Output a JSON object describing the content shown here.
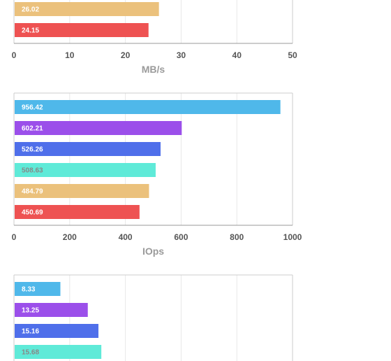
{
  "colors": {
    "cyan": "#4fb8ea",
    "purple": "#9b4fea",
    "blue": "#4f6fea",
    "teal": "#5fead8",
    "amber": "#ebc17c",
    "red": "#ee5252",
    "axis": "#999999",
    "grid": "#e8e8e8",
    "frame": "#cccccc"
  },
  "chart_data": [
    {
      "type": "bar",
      "orientation": "horizontal",
      "xlabel": "MB/s",
      "xlim": [
        0,
        50
      ],
      "xticks": [
        "0",
        "10",
        "20",
        "30",
        "40",
        "50"
      ],
      "values": [
        26.02,
        24.15
      ],
      "labels": [
        "26.02",
        "24.15"
      ],
      "bar_colors": [
        "amber",
        "red"
      ],
      "label_colors": [
        "#ffffff",
        "#ffffff"
      ],
      "grid": true
    },
    {
      "type": "bar",
      "orientation": "horizontal",
      "xlabel": "IOps",
      "xlim": [
        0,
        1000
      ],
      "xticks": [
        "0",
        "200",
        "400",
        "600",
        "800",
        "1000"
      ],
      "values": [
        956.42,
        602.21,
        526.26,
        508.63,
        484.79,
        450.69
      ],
      "labels": [
        "956.42",
        "602.21",
        "526.26",
        "508.63",
        "484.79",
        "450.69"
      ],
      "bar_colors": [
        "cyan",
        "purple",
        "blue",
        "teal",
        "amber",
        "red"
      ],
      "label_colors": [
        "#ffffff",
        "#ffffff",
        "#ffffff",
        "#888888",
        "#ffffff",
        "#ffffff"
      ],
      "grid": true
    },
    {
      "type": "bar",
      "orientation": "horizontal",
      "xlabel": "",
      "xlim": [
        0,
        50
      ],
      "xticks": [],
      "values": [
        8.33,
        13.25,
        15.16,
        15.68
      ],
      "labels": [
        "8.33",
        "13.25",
        "15.16",
        "15.68"
      ],
      "bar_colors": [
        "cyan",
        "purple",
        "blue",
        "teal"
      ],
      "label_colors": [
        "#ffffff",
        "#ffffff",
        "#ffffff",
        "#888888"
      ],
      "grid": true
    }
  ]
}
